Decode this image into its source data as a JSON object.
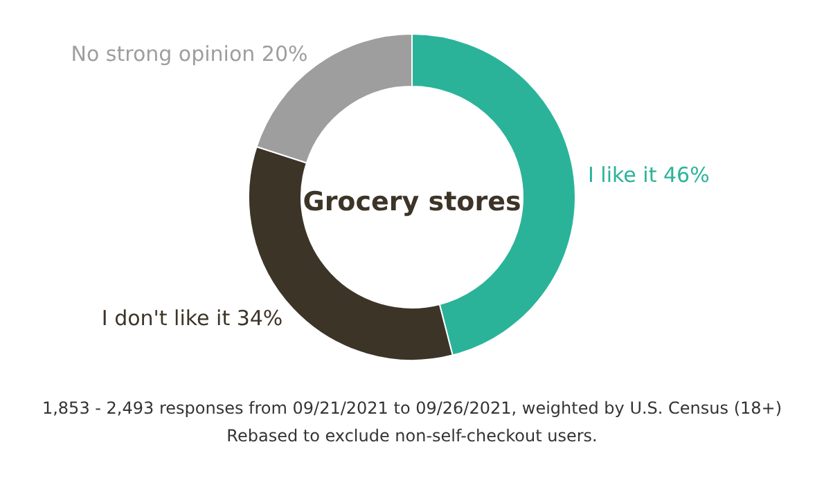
{
  "chart_data": {
    "type": "donut",
    "title": "Grocery stores",
    "categories": [
      "I like it",
      "I don't like it",
      "No strong opinion"
    ],
    "values": [
      46,
      34,
      20
    ],
    "value_labels": [
      "46%",
      "34%",
      "20%"
    ],
    "colors": [
      "#2bb39a",
      "#3d3428",
      "#9e9e9e"
    ],
    "annotations": [
      "1,853 - 2,493 responses from 09/21/2021 to 09/26/2021, weighted by U.S. Census (18+)",
      "Rebased to exclude non-self-checkout users."
    ]
  }
}
